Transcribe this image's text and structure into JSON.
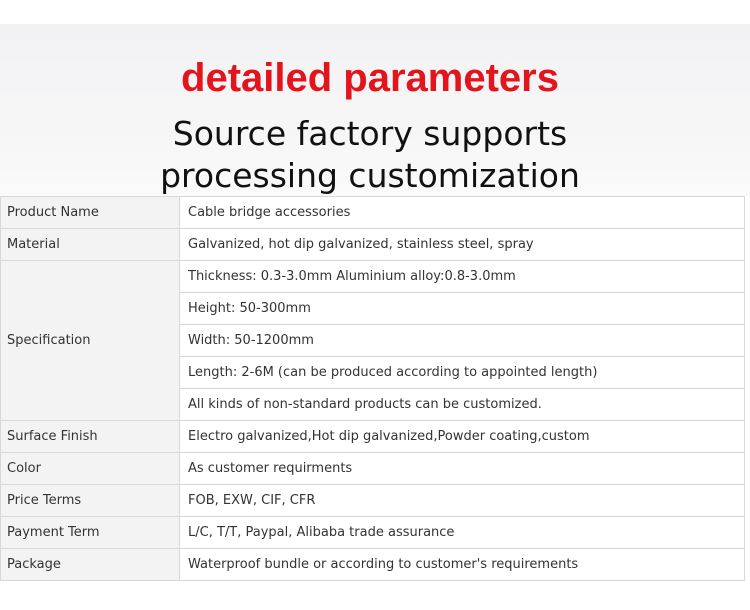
{
  "header": {
    "title": "detailed parameters",
    "subtitle_line1": "Source factory supports",
    "subtitle_line2": "processing customization"
  },
  "colors": {
    "title_red": "#e3141b",
    "label_bg": "#f3f3f3",
    "border": "#d8d8d8"
  },
  "table": {
    "product_name": {
      "label": "Product Name",
      "value": "Cable bridge accessories"
    },
    "material": {
      "label": "Material",
      "value": "Galvanized, hot dip galvanized, stainless steel, spray"
    },
    "specification": {
      "label": "Specification",
      "values": [
        "Thickness: 0.3-3.0mm Aluminium alloy:0.8-3.0mm",
        "Height: 50-300mm",
        "Width: 50-1200mm",
        "Length: 2-6M (can be produced according to appointed length)",
        "All kinds of non-standard products can be customized."
      ]
    },
    "surface_finish": {
      "label": "Surface Finish",
      "value": "Electro galvanized,Hot dip galvanized,Powder coating,custom"
    },
    "color": {
      "label": "Color",
      "value": "As customer requirments"
    },
    "price_terms": {
      "label": "Price Terms",
      "value": "FOB, EXW, CIF, CFR"
    },
    "payment_term": {
      "label": "Payment Term",
      "value": "L/C, T/T, Paypal, Alibaba trade assurance"
    },
    "package": {
      "label": "Package",
      "value": "Waterproof bundle or according to customer's requirements"
    }
  }
}
